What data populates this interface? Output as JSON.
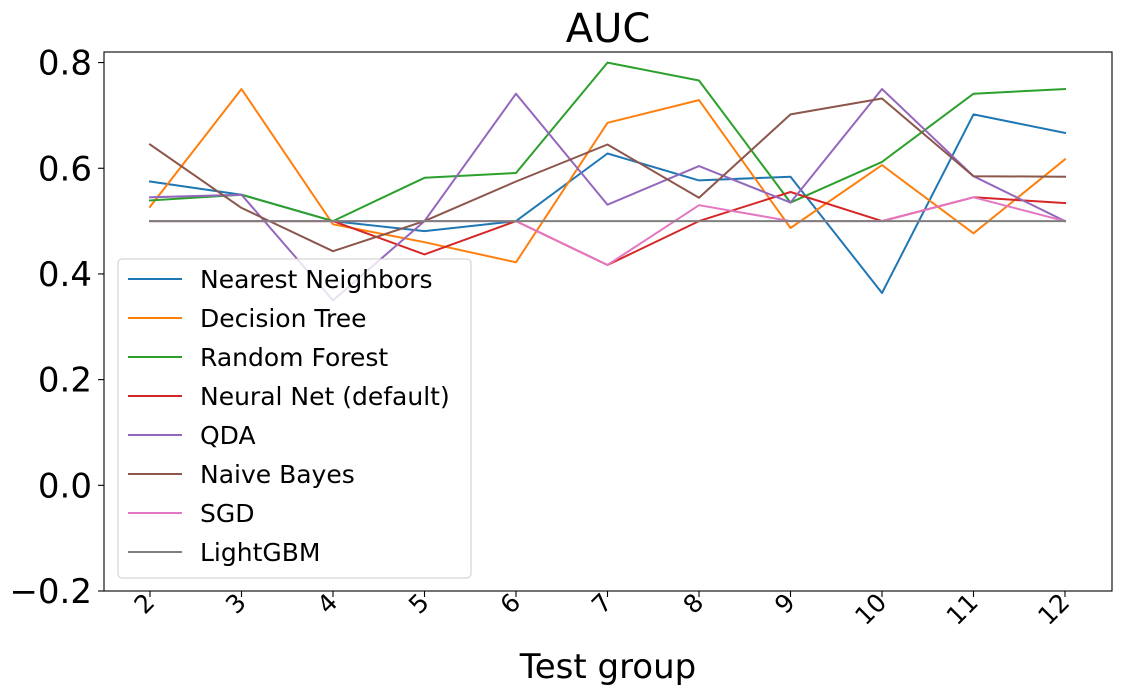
{
  "chart_data": {
    "type": "line",
    "title": "AUC",
    "xlabel": "Test group",
    "ylabel": "",
    "categories": [
      "2",
      "3",
      "4",
      "5",
      "6",
      "7",
      "8",
      "9",
      "10",
      "11",
      "12"
    ],
    "ylim": [
      -0.2,
      0.82
    ],
    "yticks": [
      -0.2,
      0.0,
      0.2,
      0.4,
      0.6,
      0.8
    ],
    "ytick_labels": [
      "−0.2",
      "0.0",
      "0.2",
      "0.4",
      "0.6",
      "0.8"
    ],
    "grid": false,
    "legend_position": "lower-left",
    "series": [
      {
        "name": "Nearest Neighbors",
        "color": "#1f77b4",
        "values": [
          0.575,
          0.55,
          0.5,
          0.481,
          0.5,
          0.628,
          0.577,
          0.584,
          0.364,
          0.702,
          0.667
        ]
      },
      {
        "name": "Decision Tree",
        "color": "#ff7f0e",
        "values": [
          0.527,
          0.75,
          0.494,
          0.46,
          0.422,
          0.686,
          0.729,
          0.487,
          0.606,
          0.477,
          0.617
        ]
      },
      {
        "name": "Random Forest",
        "color": "#2ca02c",
        "values": [
          0.539,
          0.55,
          0.5,
          0.582,
          0.591,
          0.8,
          0.766,
          0.535,
          0.612,
          0.741,
          0.75
        ]
      },
      {
        "name": "Neural Net (default)",
        "color": "#d62728",
        "values": [
          0.5,
          0.5,
          0.5,
          0.437,
          0.5,
          0.417,
          0.5,
          0.555,
          0.5,
          0.545,
          0.534
        ]
      },
      {
        "name": "QDA",
        "color": "#9467bd",
        "values": [
          0.545,
          0.55,
          0.35,
          0.5,
          0.741,
          0.531,
          0.604,
          0.535,
          0.75,
          0.585,
          0.5
        ]
      },
      {
        "name": "Naive Bayes",
        "color": "#8c564b",
        "values": [
          0.645,
          0.525,
          0.443,
          0.5,
          0.575,
          0.645,
          0.544,
          0.702,
          0.732,
          0.585,
          0.584
        ]
      },
      {
        "name": "SGD",
        "color": "#e377c2",
        "values": [
          0.5,
          0.5,
          0.5,
          0.5,
          0.5,
          0.417,
          0.53,
          0.5,
          0.5,
          0.545,
          0.5
        ]
      },
      {
        "name": "LightGBM",
        "color": "#7f7f7f",
        "values": [
          0.5,
          0.5,
          0.5,
          0.5,
          0.5,
          0.5,
          0.5,
          0.5,
          0.5,
          0.5,
          0.5
        ]
      }
    ]
  }
}
